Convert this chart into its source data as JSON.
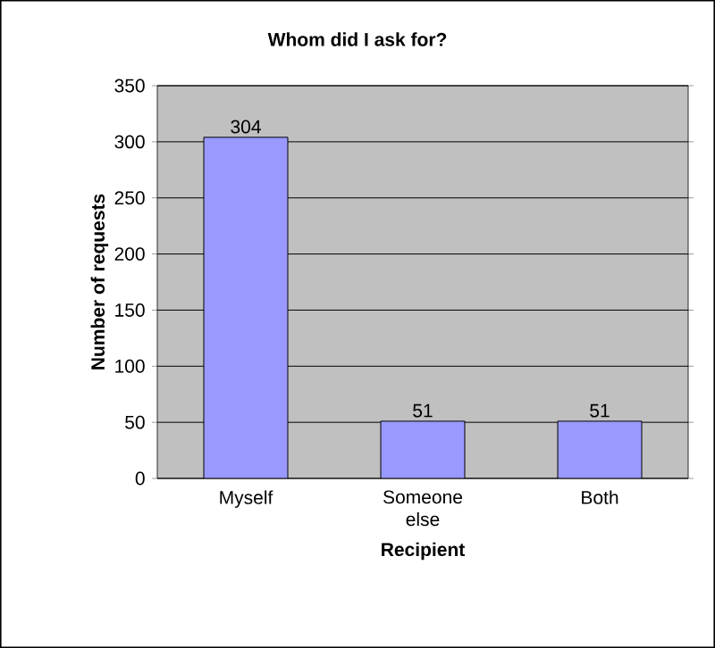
{
  "chart_data": {
    "type": "bar",
    "title": "Whom did I ask for?",
    "xlabel": "Recipient",
    "ylabel": "Number of requests",
    "categories": [
      "Myself",
      "Someone else",
      "Both"
    ],
    "values": [
      304,
      51,
      51
    ],
    "color": "#9999ff",
    "ylim": [
      0,
      350
    ],
    "yticks": [
      0,
      50,
      100,
      150,
      200,
      250,
      300,
      350
    ],
    "grid": true,
    "data_labels": true
  }
}
